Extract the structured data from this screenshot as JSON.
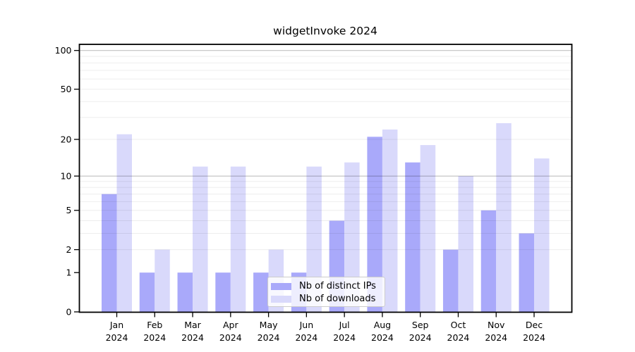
{
  "chart_data": {
    "type": "bar",
    "title": "widgetInvoke 2024",
    "categories": [
      "Jan 2024",
      "Feb 2024",
      "Mar 2024",
      "Apr 2024",
      "May 2024",
      "Jun 2024",
      "Jul 2024",
      "Aug 2024",
      "Sep 2024",
      "Oct 2024",
      "Nov 2024",
      "Dec 2024"
    ],
    "series": [
      {
        "name": "Nb of distinct IPs",
        "color": "#a9a9fa",
        "values": [
          7,
          1,
          1,
          1,
          1,
          1,
          4,
          21,
          13,
          2,
          5,
          3
        ]
      },
      {
        "name": "Nb of downloads",
        "color": "#d9d9fb",
        "values": [
          22,
          2,
          12,
          12,
          2,
          12,
          13,
          24,
          18,
          10,
          27,
          14
        ]
      }
    ],
    "y_ticks": [
      0,
      1,
      2,
      5,
      10,
      20,
      50,
      100
    ],
    "y_minor_gridlines": [
      2,
      3,
      4,
      5,
      6,
      7,
      8,
      9,
      20,
      30,
      40,
      50,
      60,
      70,
      80,
      90
    ],
    "y_major_gridlines": [
      10,
      100
    ],
    "y_scale": "log1p",
    "ylim": [
      0,
      111.5
    ],
    "grid": true,
    "legend_position": "lower center",
    "axis_color": "#000000",
    "background_color": "#ffffff"
  }
}
